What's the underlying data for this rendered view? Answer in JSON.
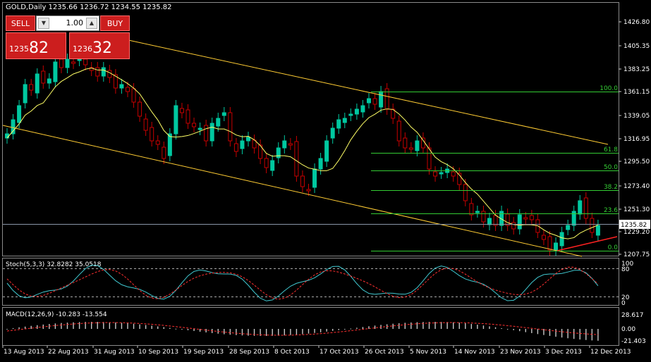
{
  "header": {
    "title": "GOLD,Daily  1235.66 1236.72 1234.55 1235.82"
  },
  "trade_panel": {
    "sell_label": "SELL",
    "buy_label": "BUY",
    "volume": "1.00",
    "sell_small": "1235",
    "sell_big": "82",
    "buy_small": "1236",
    "buy_big": "32"
  },
  "price_axis": {
    "labels": [
      "1426.80",
      "1405.35",
      "1383.25",
      "1361.15",
      "1339.05",
      "1316.95",
      "1295.50",
      "1273.40",
      "1251.30",
      "1229.20",
      "1207.75"
    ],
    "current_price": "1235.82"
  },
  "fibonacci": {
    "levels": [
      "100.0",
      "61.8",
      "50.0",
      "38.2",
      "23.6",
      "0.0"
    ]
  },
  "stochastic": {
    "title": "Stoch(5,3,3) 32.8282 35.0518",
    "axis_labels": [
      "100",
      "80",
      "20",
      "0"
    ]
  },
  "macd": {
    "title": "MACD(12,26,9) -10.283 -13.554",
    "axis_labels": [
      "28.617",
      "0.00",
      "-21.403"
    ]
  },
  "time_axis": {
    "labels": [
      "13 Aug 2013",
      "22 Aug 2013",
      "31 Aug 2013",
      "10 Sep 2013",
      "19 Sep 2013",
      "28 Sep 2013",
      "8 Oct 2013",
      "17 Oct 2013",
      "26 Oct 2013",
      "5 Nov 2013",
      "14 Nov 2013",
      "23 Nov 2013",
      "3 Dec 2013",
      "12 Dec 2013"
    ]
  },
  "colors": {
    "background": "#000000",
    "bull_candle": "#00c8a0",
    "bear_candle": "#c80000",
    "moving_average": "#ffff66",
    "channel": "#ffcc33",
    "fib": "#33cc33",
    "trendline": "#ff2222",
    "stoch_main": "#40c8d0",
    "stoch_signal": "#ff3030",
    "macd_hist": "#c8c8c8",
    "macd_signal": "#ff3030"
  }
}
